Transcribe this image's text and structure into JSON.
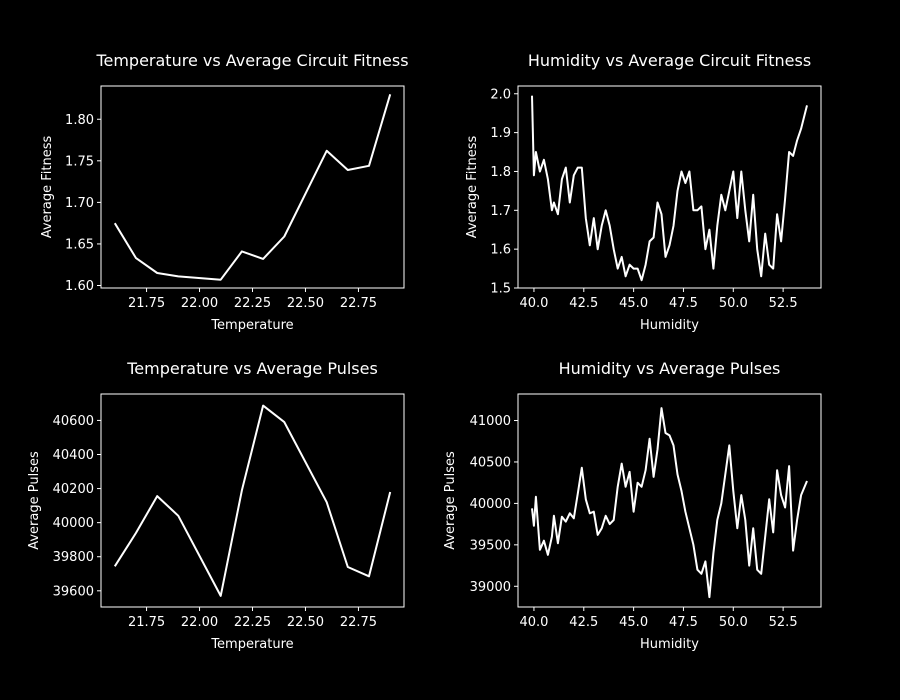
{
  "chart_data": [
    {
      "id": "temp-fitness",
      "type": "line",
      "title": "Temperature vs Average Circuit Fitness",
      "xlabel": "Temperature",
      "ylabel": "Average Fitness",
      "xlim": [
        21.535,
        22.965
      ],
      "ylim": [
        1.597,
        1.84
      ],
      "xticks": [
        "21.75",
        "22.00",
        "22.25",
        "22.50",
        "22.75"
      ],
      "yticks": [
        "1.60",
        "1.65",
        "1.70",
        "1.75",
        "1.80"
      ],
      "x": [
        21.6,
        21.7,
        21.8,
        21.9,
        22.1,
        22.2,
        22.3,
        22.4,
        22.6,
        22.7,
        22.8,
        22.9
      ],
      "y": [
        1.675,
        1.633,
        1.615,
        1.611,
        1.607,
        1.641,
        1.632,
        1.659,
        1.762,
        1.739,
        1.744,
        1.83
      ]
    },
    {
      "id": "humidity-fitness",
      "type": "line",
      "title": "Humidity vs Average Circuit Fitness",
      "xlabel": "Humidity",
      "ylabel": "Average Fitness",
      "xlim": [
        39.2,
        54.4
      ],
      "ylim": [
        1.5,
        2.02
      ],
      "xticks": [
        "40.0",
        "42.5",
        "45.0",
        "47.5",
        "50.0",
        "52.5"
      ],
      "yticks": [
        "1.5",
        "1.6",
        "1.7",
        "1.8",
        "1.9",
        "2.0"
      ],
      "x": [
        39.9,
        40.0,
        40.1,
        40.3,
        40.5,
        40.7,
        40.9,
        41.0,
        41.2,
        41.4,
        41.6,
        41.8,
        42.0,
        42.2,
        42.4,
        42.6,
        42.8,
        43.0,
        43.2,
        43.4,
        43.6,
        43.8,
        44.0,
        44.2,
        44.4,
        44.6,
        44.8,
        45.0,
        45.2,
        45.4,
        45.6,
        45.8,
        46.0,
        46.2,
        46.4,
        46.6,
        46.8,
        47.0,
        47.2,
        47.4,
        47.6,
        47.8,
        48.0,
        48.2,
        48.4,
        48.6,
        48.8,
        49.0,
        49.2,
        49.4,
        49.6,
        49.8,
        50.0,
        50.2,
        50.4,
        50.6,
        50.8,
        51.0,
        51.2,
        51.4,
        51.6,
        51.8,
        52.0,
        52.2,
        52.4,
        52.6,
        52.8,
        53.0,
        53.2,
        53.4,
        53.7
      ],
      "y": [
        1.995,
        1.79,
        1.85,
        1.8,
        1.83,
        1.78,
        1.7,
        1.72,
        1.69,
        1.78,
        1.81,
        1.72,
        1.79,
        1.81,
        1.81,
        1.68,
        1.61,
        1.68,
        1.6,
        1.66,
        1.7,
        1.66,
        1.6,
        1.55,
        1.58,
        1.53,
        1.56,
        1.55,
        1.55,
        1.52,
        1.56,
        1.62,
        1.63,
        1.72,
        1.69,
        1.58,
        1.61,
        1.66,
        1.75,
        1.8,
        1.77,
        1.8,
        1.7,
        1.7,
        1.71,
        1.6,
        1.65,
        1.55,
        1.66,
        1.74,
        1.7,
        1.75,
        1.8,
        1.68,
        1.8,
        1.7,
        1.62,
        1.74,
        1.6,
        1.53,
        1.64,
        1.56,
        1.55,
        1.69,
        1.62,
        1.73,
        1.85,
        1.84,
        1.88,
        1.91,
        1.97
      ]
    },
    {
      "id": "temp-pulses",
      "type": "line",
      "title": "Temperature vs Average Pulses",
      "xlabel": "Temperature",
      "ylabel": "Average Pulses",
      "xlim": [
        21.535,
        22.965
      ],
      "ylim": [
        39505,
        40755
      ],
      "xticks": [
        "21.75",
        "22.00",
        "22.25",
        "22.50",
        "22.75"
      ],
      "yticks": [
        "39600",
        "39800",
        "40000",
        "40200",
        "40400",
        "40600"
      ],
      "x": [
        21.6,
        21.7,
        21.8,
        21.9,
        22.1,
        22.2,
        22.3,
        22.4,
        22.6,
        22.7,
        22.8,
        22.9
      ],
      "y": [
        39744,
        39940,
        40156,
        40040,
        39570,
        40190,
        40687,
        40590,
        40120,
        39740,
        39685,
        40180
      ]
    },
    {
      "id": "humidity-pulses",
      "type": "line",
      "title": "Humidity vs Average Pulses",
      "xlabel": "Humidity",
      "ylabel": "Average Pulses",
      "xlim": [
        39.2,
        54.4
      ],
      "ylim": [
        38750,
        41320
      ],
      "xticks": [
        "40.0",
        "42.5",
        "45.0",
        "47.5",
        "50.0",
        "52.5"
      ],
      "yticks": [
        "39000",
        "39500",
        "40000",
        "40500",
        "41000"
      ],
      "x": [
        39.9,
        40.0,
        40.1,
        40.3,
        40.5,
        40.7,
        40.9,
        41.0,
        41.2,
        41.4,
        41.6,
        41.8,
        42.0,
        42.2,
        42.4,
        42.6,
        42.8,
        43.0,
        43.2,
        43.4,
        43.6,
        43.8,
        44.0,
        44.2,
        44.4,
        44.6,
        44.8,
        45.0,
        45.2,
        45.4,
        45.6,
        45.8,
        46.0,
        46.2,
        46.4,
        46.6,
        46.8,
        47.0,
        47.2,
        47.4,
        47.6,
        47.8,
        48.0,
        48.2,
        48.4,
        48.6,
        48.8,
        49.0,
        49.2,
        49.4,
        49.6,
        49.8,
        50.0,
        50.2,
        50.4,
        50.6,
        50.8,
        51.0,
        51.2,
        51.4,
        51.6,
        51.8,
        52.0,
        52.2,
        52.4,
        52.6,
        52.8,
        53.0,
        53.2,
        53.4,
        53.7
      ],
      "y": [
        39940,
        39730,
        40080,
        39440,
        39550,
        39380,
        39600,
        39850,
        39520,
        39840,
        39780,
        39880,
        39820,
        40120,
        40430,
        40050,
        39880,
        39900,
        39620,
        39700,
        39850,
        39750,
        39800,
        40200,
        40480,
        40200,
        40380,
        39900,
        40250,
        40200,
        40400,
        40780,
        40320,
        40650,
        41150,
        40850,
        40820,
        40700,
        40350,
        40150,
        39900,
        39700,
        39500,
        39200,
        39150,
        39300,
        38870,
        39400,
        39800,
        40000,
        40350,
        40700,
        40150,
        39700,
        40100,
        39800,
        39250,
        39700,
        39200,
        39150,
        39600,
        40050,
        39650,
        40400,
        40100,
        39950,
        40450,
        39430,
        39800,
        40100,
        40270
      ]
    }
  ]
}
